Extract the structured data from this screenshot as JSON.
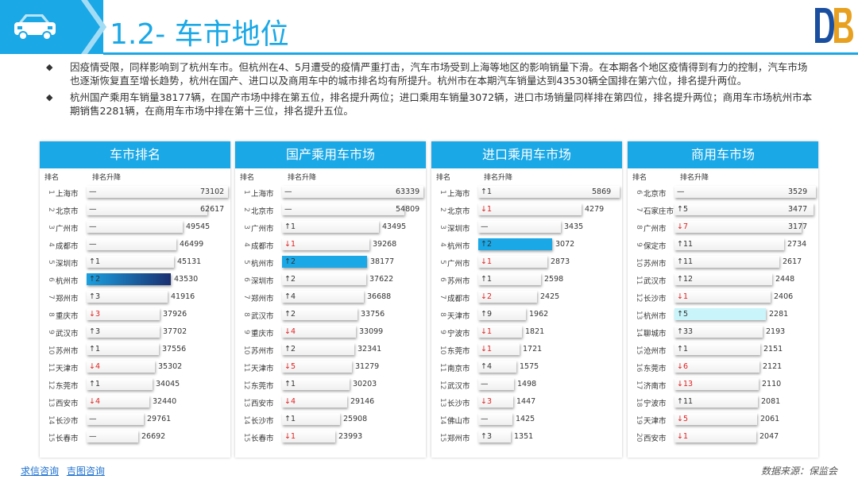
{
  "header": {
    "title": "1.2- 车市地位"
  },
  "bullets": [
    "因疫情受限，同样影响到了杭州车市。但杭州在4、5月遭受的疫情严重打击，汽车市场受到上海等地区的影响销量下滑。在本期各个地区疫情得到有力的控制，汽车市场也逐渐恢复直至增长趋势，杭州在国产、进口以及商用车中的城市排名均有所提升。杭州市在本期汽车销量达到43530辆全国排在第六位，排名提升两位。",
    "杭州国产乘用车销量38177辆，在国产市场中排在第五位，排名提升两位；进口乘用车销量3072辆，进口市场销量同样排在第四位，排名提升两位；商用车市场杭州市本期销售2281辆，在商用车市场中排在第十三位，排名提升五位。"
  ],
  "column_headers": {
    "rank": "排名",
    "change": "排名升降"
  },
  "colors": {
    "accent": "#1aa8e6",
    "down": "#e02020"
  },
  "footer": {
    "link1": "求信咨询",
    "link2": "吉图咨询",
    "source": "数据来源：保监会"
  },
  "chart_data": [
    {
      "type": "bar",
      "title": "车市排名",
      "ranks": [
        "1",
        "2",
        "3",
        "4",
        "5",
        "6",
        "7",
        "8",
        "9",
        "10",
        "11",
        "12",
        "13",
        "14",
        "15"
      ],
      "categories": [
        "上海市",
        "北京市",
        "广州市",
        "成都市",
        "深圳市",
        "杭州市",
        "郑州市",
        "重庆市",
        "武汉市",
        "苏州市",
        "天津市",
        "东莞市",
        "西安市",
        "长沙市",
        "长春市"
      ],
      "changes": [
        "—",
        "—",
        "—",
        "—",
        "↑1",
        "↑2",
        "↑3",
        "↓3",
        "↑3",
        "↑1",
        "↓4",
        "↑1",
        "↓4",
        "—",
        "—"
      ],
      "values": [
        73102,
        62617,
        49545,
        46499,
        45131,
        43530,
        41916,
        37926,
        37702,
        37556,
        35302,
        34045,
        32440,
        29761,
        26692
      ],
      "highlight": "杭州市"
    },
    {
      "type": "bar",
      "title": "国产乘用车市场",
      "ranks": [
        "1",
        "2",
        "3",
        "4",
        "5",
        "6",
        "7",
        "8",
        "9",
        "10",
        "11",
        "12",
        "13",
        "14",
        "15"
      ],
      "categories": [
        "上海市",
        "北京市",
        "广州市",
        "成都市",
        "杭州市",
        "深圳市",
        "郑州市",
        "武汉市",
        "重庆市",
        "苏州市",
        "天津市",
        "东莞市",
        "西安市",
        "长沙市",
        "长春市"
      ],
      "changes": [
        "—",
        "—",
        "↑1",
        "↓1",
        "↑2",
        "↑2",
        "↑4",
        "↑2",
        "↓4",
        "↑2",
        "↓5",
        "↑1",
        "↓4",
        "↑1",
        "↓1"
      ],
      "values": [
        63339,
        54809,
        43495,
        39268,
        38177,
        37622,
        36688,
        33756,
        33099,
        32341,
        31279,
        30203,
        29146,
        25908,
        23993
      ],
      "highlight": "杭州市"
    },
    {
      "type": "bar",
      "title": "进口乘用车市场",
      "ranks": [
        "1",
        "2",
        "3",
        "4",
        "5",
        "6",
        "7",
        "8",
        "9",
        "10",
        "11",
        "12",
        "13",
        "14",
        "15"
      ],
      "categories": [
        "上海市",
        "北京市",
        "深圳市",
        "杭州市",
        "广州市",
        "苏州市",
        "成都市",
        "天津市",
        "宁波市",
        "东莞市",
        "南京市",
        "武汉市",
        "长沙市",
        "佛山市",
        "郑州市"
      ],
      "changes": [
        "↑1",
        "↓1",
        "—",
        "↑2",
        "↓1",
        "↑1",
        "↓2",
        "↑9",
        "↓1",
        "↓1",
        "↑4",
        "—",
        "↓3",
        "—",
        "↑3"
      ],
      "values": [
        5869,
        4279,
        3435,
        3072,
        2873,
        2598,
        2425,
        1962,
        1821,
        1721,
        1575,
        1498,
        1447,
        1425,
        1351
      ],
      "highlight": "杭州市"
    },
    {
      "type": "bar",
      "title": "商用车市场",
      "ranks": [
        "6",
        "7",
        "8",
        "9",
        "10",
        "11",
        "12",
        "13",
        "14",
        "15",
        "16",
        "17",
        "18",
        "19",
        "20"
      ],
      "categories": [
        "北京市",
        "石家庄市",
        "广州市",
        "保定市",
        "苏州市",
        "武汉市",
        "长沙市",
        "杭州市",
        "聊城市",
        "沧州市",
        "东莞市",
        "济南市",
        "宁波市",
        "天津市",
        "西安市"
      ],
      "changes": [
        "—",
        "↑5",
        "↓7",
        "↑11",
        "↑11",
        "↑12",
        "↓1",
        "↑5",
        "↑33",
        "↑1",
        "↓6",
        "↓13",
        "↑11",
        "↓5",
        "↓1"
      ],
      "values": [
        3529,
        3477,
        3177,
        2734,
        2617,
        2448,
        2406,
        2281,
        2193,
        2151,
        2121,
        2110,
        2081,
        2061,
        2047
      ],
      "highlight": "杭州市"
    }
  ]
}
